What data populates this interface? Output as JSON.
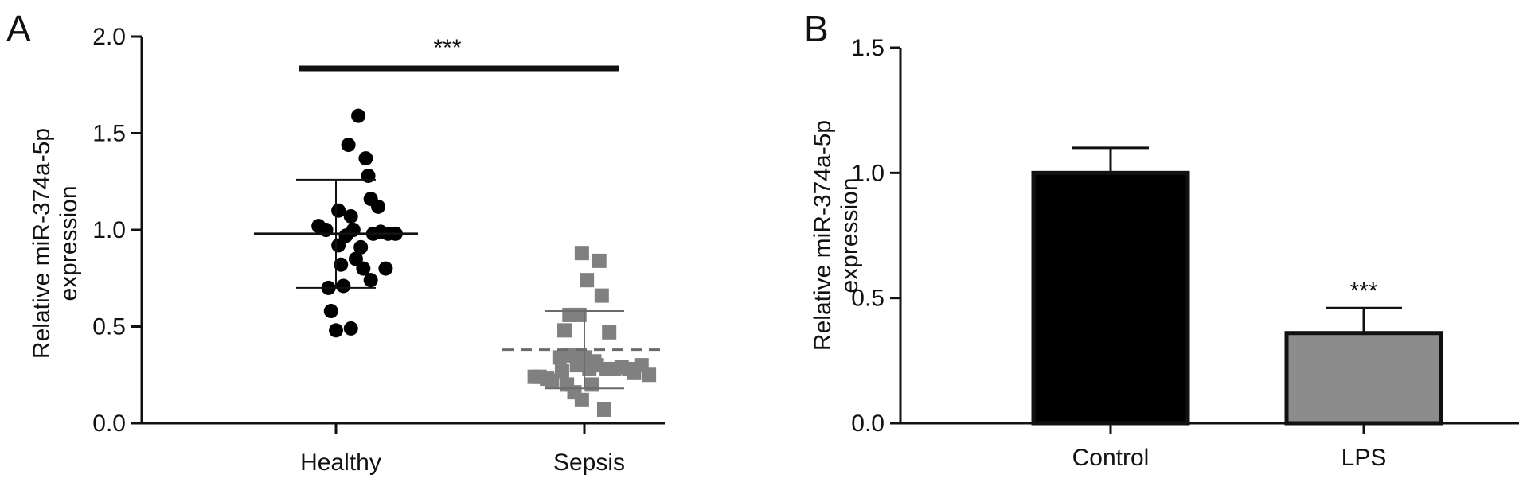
{
  "chart_data": [
    {
      "panel": "A",
      "type": "scatter",
      "ylabel_lines": [
        "Relative miR-374a-5p",
        "expression"
      ],
      "ylim": [
        0,
        2.0
      ],
      "yticks": [
        "0.0",
        "0.5",
        "1.0",
        "1.5",
        "2.0"
      ],
      "categories": [
        "Healthy",
        "Sepsis"
      ],
      "series": [
        {
          "category": "Healthy",
          "marker": "circle",
          "color": "#000000",
          "mean": 0.98,
          "sd_upper": 1.26,
          "sd_lower": 0.7,
          "points": [
            [
              0.93,
              1.02
            ],
            [
              0.96,
              1.0
            ],
            [
              0.97,
              0.7
            ],
            [
              0.98,
              0.58
            ],
            [
              1.0,
              0.48
            ],
            [
              1.01,
              1.1
            ],
            [
              1.01,
              0.92
            ],
            [
              1.02,
              0.82
            ],
            [
              1.03,
              0.71
            ],
            [
              1.04,
              0.97
            ],
            [
              1.05,
              1.44
            ],
            [
              1.06,
              1.07
            ],
            [
              1.06,
              0.49
            ],
            [
              1.07,
              1.0
            ],
            [
              1.08,
              0.85
            ],
            [
              1.09,
              1.59
            ],
            [
              1.1,
              0.91
            ],
            [
              1.11,
              0.8
            ],
            [
              1.12,
              1.37
            ],
            [
              1.13,
              1.28
            ],
            [
              1.14,
              1.16
            ],
            [
              1.14,
              0.74
            ],
            [
              1.15,
              0.98
            ],
            [
              1.17,
              1.12
            ],
            [
              1.18,
              0.99
            ],
            [
              1.2,
              0.8
            ],
            [
              1.21,
              0.98
            ],
            [
              1.24,
              0.98
            ]
          ]
        },
        {
          "category": "Sepsis",
          "marker": "square",
          "color": "#808080",
          "mean": 0.38,
          "sd_upper": 0.58,
          "sd_lower": 0.18,
          "points": [
            [
              1.8,
              0.24
            ],
            [
              1.82,
              0.24
            ],
            [
              1.85,
              0.23
            ],
            [
              1.87,
              0.22
            ],
            [
              1.9,
              0.34
            ],
            [
              1.91,
              0.27
            ],
            [
              1.92,
              0.48
            ],
            [
              1.93,
              0.2
            ],
            [
              1.94,
              0.56
            ],
            [
              1.95,
              0.35
            ],
            [
              1.96,
              0.16
            ],
            [
              1.97,
              0.3
            ],
            [
              1.98,
              0.56
            ],
            [
              1.99,
              0.12
            ],
            [
              1.99,
              0.88
            ],
            [
              2.0,
              0.34
            ],
            [
              2.01,
              0.74
            ],
            [
              2.02,
              0.28
            ],
            [
              2.03,
              0.2
            ],
            [
              2.04,
              0.32
            ],
            [
              2.05,
              0.3
            ],
            [
              2.06,
              0.84
            ],
            [
              2.07,
              0.66
            ],
            [
              2.08,
              0.07
            ],
            [
              2.09,
              0.28
            ],
            [
              2.1,
              0.47
            ],
            [
              2.12,
              0.28
            ],
            [
              2.15,
              0.29
            ],
            [
              2.18,
              0.28
            ],
            [
              2.2,
              0.26
            ],
            [
              2.23,
              0.3
            ],
            [
              2.26,
              0.25
            ]
          ]
        }
      ],
      "significance": {
        "label": "***",
        "between": [
          "Healthy",
          "Sepsis"
        ]
      }
    },
    {
      "panel": "B",
      "type": "bar",
      "ylabel_lines": [
        "Relative miR-374a-5p",
        "expression"
      ],
      "ylim": [
        0,
        1.5
      ],
      "yticks": [
        "0.0",
        "0.5",
        "1.0",
        "1.5"
      ],
      "categories": [
        "Control",
        "LPS"
      ],
      "values": [
        1.0,
        0.36
      ],
      "errors": [
        0.1,
        0.1
      ],
      "colors": [
        "#000000",
        "#8c8c8c"
      ],
      "bar_annotations": [
        "",
        "***"
      ]
    }
  ]
}
